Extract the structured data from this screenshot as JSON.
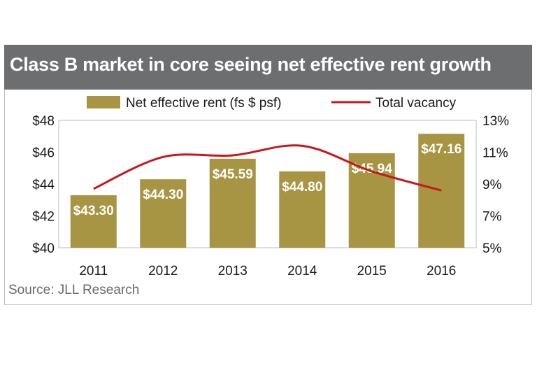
{
  "chart_data": {
    "type": "bar",
    "title": "Class B market in core seeing net effective rent growth",
    "categories": [
      "2011",
      "2012",
      "2013",
      "2014",
      "2015",
      "2016"
    ],
    "series": [
      {
        "name": "Net effective rent (fs $ psf)",
        "type": "bar",
        "axis": "left",
        "color": "#a89544",
        "values": [
          43.3,
          44.3,
          45.59,
          44.8,
          45.94,
          47.16
        ],
        "labels": [
          "$43.30",
          "$44.30",
          "$45.59",
          "$44.80",
          "$45.94",
          "$47.16"
        ]
      },
      {
        "name": "Total vacancy",
        "type": "line",
        "axis": "right",
        "color": "#c8161d",
        "smooth": true,
        "values": [
          8.7,
          10.7,
          10.8,
          11.4,
          9.8,
          8.6
        ]
      }
    ],
    "y_left": {
      "min": 40,
      "max": 48,
      "ticks": [
        "$40",
        "$42",
        "$44",
        "$46",
        "$48"
      ]
    },
    "y_right": {
      "min": 5,
      "max": 13,
      "ticks": [
        "5%",
        "7%",
        "9%",
        "11%",
        "13%"
      ]
    },
    "legend_position": "top",
    "grid": false,
    "source": "Source: JLL Research"
  }
}
